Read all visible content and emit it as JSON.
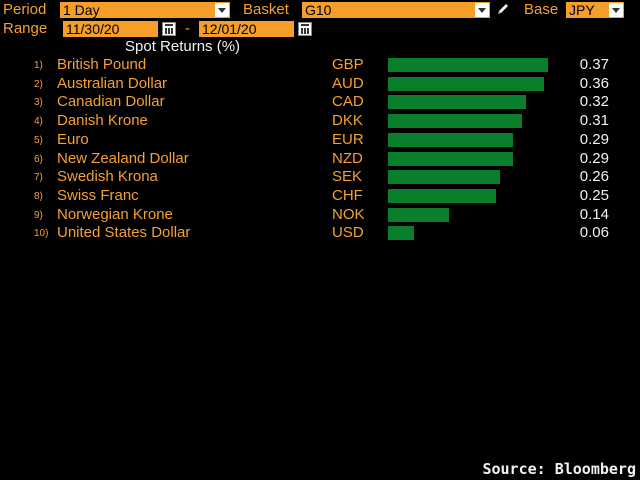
{
  "header": {
    "period_label": "Period",
    "period_value": "1 Day",
    "basket_label": "Basket",
    "basket_value": "G10",
    "base_label": "Base",
    "base_value": "JPY",
    "range_label": "Range",
    "range_start": "11/30/20",
    "range_sep": "-",
    "range_end": "12/01/20"
  },
  "chart_title": "Spot Returns (%)",
  "rows": [
    {
      "rank": "1)",
      "name": "British Pound",
      "code": "GBP",
      "value": "0.37"
    },
    {
      "rank": "2)",
      "name": "Australian Dollar",
      "code": "AUD",
      "value": "0.36"
    },
    {
      "rank": "3)",
      "name": "Canadian Dollar",
      "code": "CAD",
      "value": "0.32"
    },
    {
      "rank": "4)",
      "name": "Danish Krone",
      "code": "DKK",
      "value": "0.31"
    },
    {
      "rank": "5)",
      "name": "Euro",
      "code": "EUR",
      "value": "0.29"
    },
    {
      "rank": "6)",
      "name": "New Zealand Dollar",
      "code": "NZD",
      "value": "0.29"
    },
    {
      "rank": "7)",
      "name": "Swedish Krona",
      "code": "SEK",
      "value": "0.26"
    },
    {
      "rank": "8)",
      "name": "Swiss Franc",
      "code": "CHF",
      "value": "0.25"
    },
    {
      "rank": "9)",
      "name": "Norwegian Krone",
      "code": "NOK",
      "value": "0.14"
    },
    {
      "rank": "10)",
      "name": "United States Dollar",
      "code": "USD",
      "value": "0.06"
    }
  ],
  "chart_data": {
    "type": "bar",
    "orientation": "horizontal",
    "title": "Spot Returns (%)",
    "categories": [
      "GBP",
      "AUD",
      "CAD",
      "DKK",
      "EUR",
      "NZD",
      "SEK",
      "CHF",
      "NOK",
      "USD"
    ],
    "values": [
      0.37,
      0.36,
      0.32,
      0.31,
      0.29,
      0.29,
      0.26,
      0.25,
      0.14,
      0.06
    ],
    "bar_color": "#0a7f2b"
  },
  "footer": {
    "source": "Source: Bloomberg"
  },
  "colors": {
    "background": "#000000",
    "label": "#f5a033",
    "field": "#f59e2a",
    "value_text": "#f2f2f2",
    "bar": "#0a7f2b"
  }
}
